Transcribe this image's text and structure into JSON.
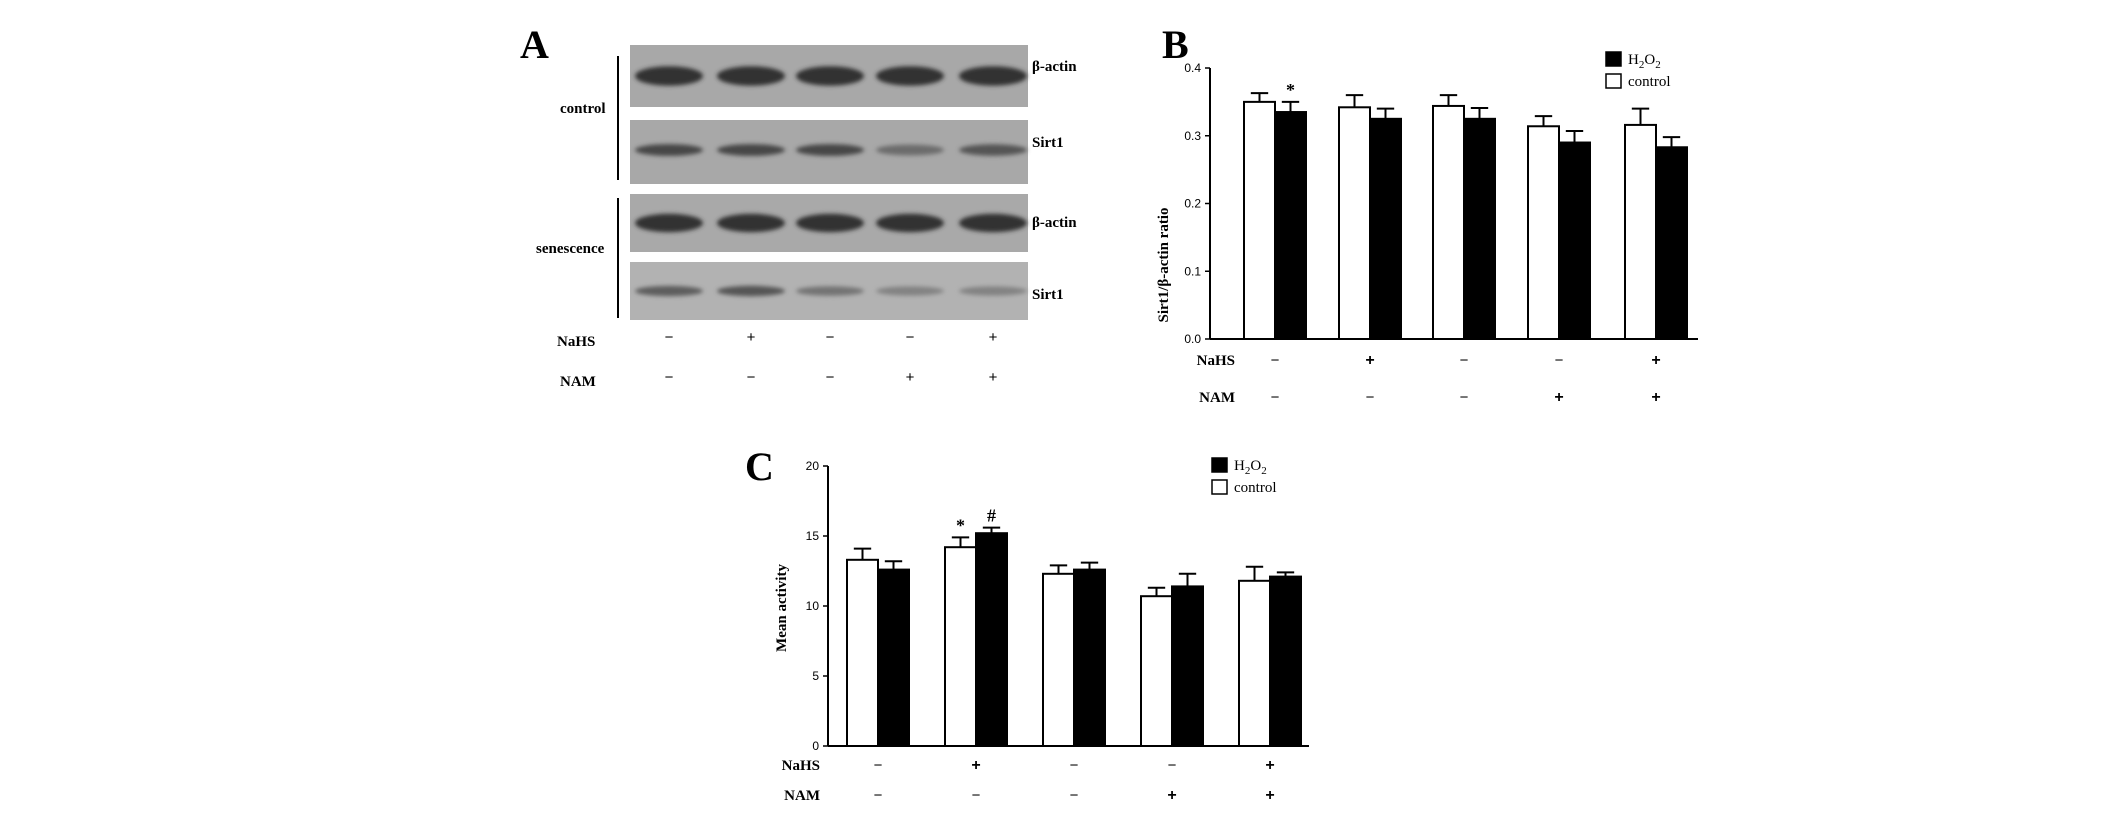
{
  "panel_a": {
    "letter": "A",
    "group_labels": [
      "control",
      "senescence"
    ],
    "blot_labels": [
      "β-actin",
      "Sirt1",
      "β-actin",
      "Sirt1"
    ],
    "row_labels": [
      "NaHS",
      "NAM"
    ],
    "treatment_signs": {
      "NaHS": [
        "−",
        "+",
        "−",
        "−",
        "+"
      ],
      "NAM": [
        "−",
        "−",
        "−",
        "+",
        "+"
      ]
    },
    "band_intensity": [
      [
        0.85,
        0.85,
        0.85,
        0.85,
        0.85
      ],
      [
        0.7,
        0.7,
        0.7,
        0.45,
        0.6
      ],
      [
        0.85,
        0.85,
        0.85,
        0.85,
        0.85
      ],
      [
        0.55,
        0.6,
        0.4,
        0.3,
        0.3
      ]
    ]
  },
  "chart_data": [
    {
      "type": "bar",
      "panel": "B",
      "ylabel": "Sirt1/β-actin ratio",
      "ylim": [
        0,
        0.4
      ],
      "yticks": [
        "0.0",
        "0.1",
        "0.2",
        "0.3",
        "0.4"
      ],
      "treatment_rows": [
        "NaHS",
        "NAM"
      ],
      "treatment_signs": {
        "NaHS": [
          "−",
          "+",
          "−",
          "−",
          "+"
        ],
        "NAM": [
          "−",
          "−",
          "−",
          "+",
          "+"
        ]
      },
      "legend": [
        "H2O2",
        "control"
      ],
      "legend_position": "top-right",
      "series": [
        {
          "name": "control",
          "fill": "#ffffff",
          "values": [
            0.35,
            0.342,
            0.344,
            0.314,
            0.316
          ],
          "errors": [
            0.013,
            0.018,
            0.016,
            0.015,
            0.024
          ]
        },
        {
          "name": "H2O2",
          "fill": "#000000",
          "values": [
            0.335,
            0.325,
            0.325,
            0.29,
            0.283
          ],
          "errors": [
            0.015,
            0.015,
            0.016,
            0.017,
            0.015
          ]
        }
      ],
      "annotations": [
        {
          "group": 0,
          "series": 1,
          "text": "*"
        }
      ]
    },
    {
      "type": "bar",
      "panel": "C",
      "ylabel": "Mean activity",
      "ylim": [
        0,
        20
      ],
      "yticks": [
        "0",
        "5",
        "10",
        "15",
        "20"
      ],
      "treatment_rows": [
        "NaHS",
        "NAM"
      ],
      "treatment_signs": {
        "NaHS": [
          "−",
          "+",
          "−",
          "−",
          "+"
        ],
        "NAM": [
          "−",
          "−",
          "−",
          "+",
          "+"
        ]
      },
      "legend": [
        "H2O2",
        "control"
      ],
      "legend_position": "top-right",
      "series": [
        {
          "name": "control",
          "fill": "#ffffff",
          "values": [
            13.3,
            14.2,
            12.3,
            10.7,
            11.8
          ],
          "errors": [
            0.8,
            0.7,
            0.6,
            0.6,
            1.0
          ]
        },
        {
          "name": "H2O2",
          "fill": "#000000",
          "values": [
            12.6,
            15.2,
            12.6,
            11.4,
            12.1
          ],
          "errors": [
            0.6,
            0.4,
            0.5,
            0.9,
            0.3
          ]
        }
      ],
      "annotations": [
        {
          "group": 1,
          "series": 0,
          "text": "*"
        },
        {
          "group": 1,
          "series": 1,
          "text": "#"
        }
      ]
    }
  ]
}
